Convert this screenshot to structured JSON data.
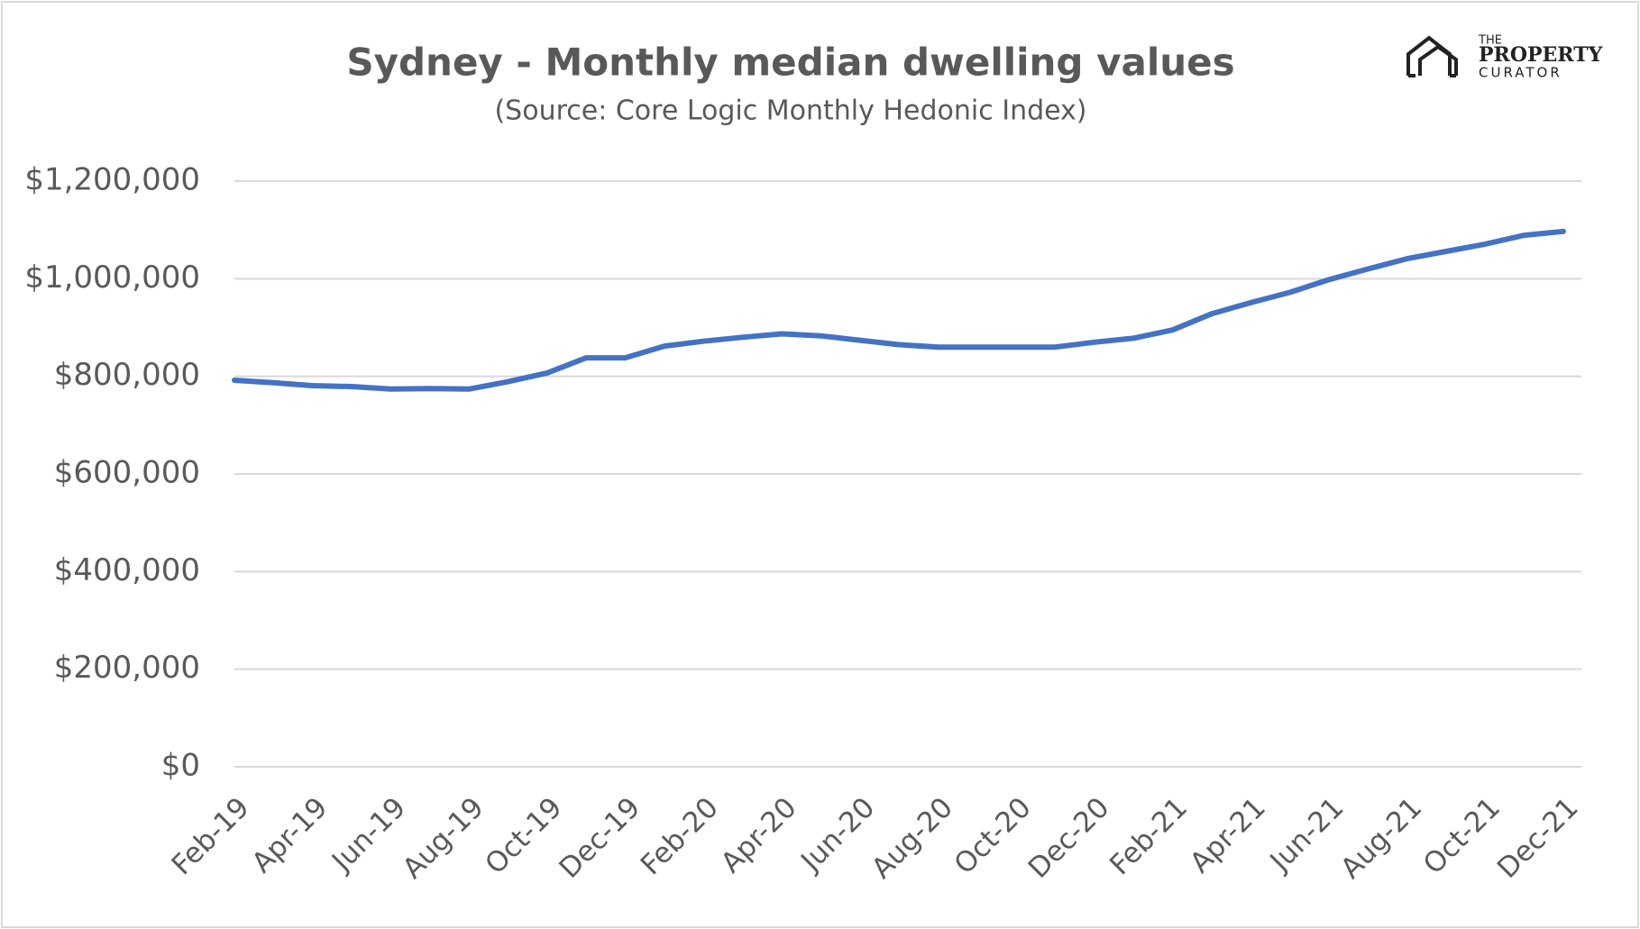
{
  "chart_data": {
    "type": "line",
    "title": "Sydney - Monthly median dwelling values",
    "subtitle": "(Source: Core Logic Monthly Hedonic Index)",
    "logo": {
      "small": "THE",
      "main": "PROPERTY",
      "sub": "CURATOR"
    },
    "categories": [
      "Feb-19",
      null,
      "Apr-19",
      null,
      "Jun-19",
      null,
      "Aug-19",
      null,
      "Oct-19",
      null,
      "Dec-19",
      null,
      "Feb-20",
      null,
      "Apr-20",
      null,
      "Jun-20",
      null,
      "Aug-20",
      null,
      "Oct-20",
      null,
      "Dec-20",
      null,
      "Feb-21",
      null,
      "Apr-21",
      null,
      "Jun-21",
      null,
      "Aug-21",
      null,
      "Oct-21",
      null,
      "Dec-21"
    ],
    "values": [
      792000,
      787000,
      781000,
      779000,
      774000,
      775000,
      774000,
      789000,
      807000,
      838000,
      838000,
      862000,
      872000,
      880000,
      887000,
      883000,
      874000,
      865000,
      860000,
      860000,
      860000,
      860000,
      870000,
      878000,
      895000,
      928000,
      951000,
      972000,
      998000,
      1020000,
      1041000,
      1056000,
      1071000,
      1089000,
      1097000
    ],
    "color": "#4472c4",
    "ylim": [
      0,
      1200000
    ],
    "yticks": [
      {
        "value": 0,
        "label": "$0"
      },
      {
        "value": 200000,
        "label": "$200,000"
      },
      {
        "value": 400000,
        "label": "$400,000"
      },
      {
        "value": 600000,
        "label": "$600,000"
      },
      {
        "value": 800000,
        "label": "$800,000"
      },
      {
        "value": 1000000,
        "label": "$1,000,000"
      },
      {
        "value": 1200000,
        "label": "$1,200,000"
      }
    ],
    "grid": true
  }
}
